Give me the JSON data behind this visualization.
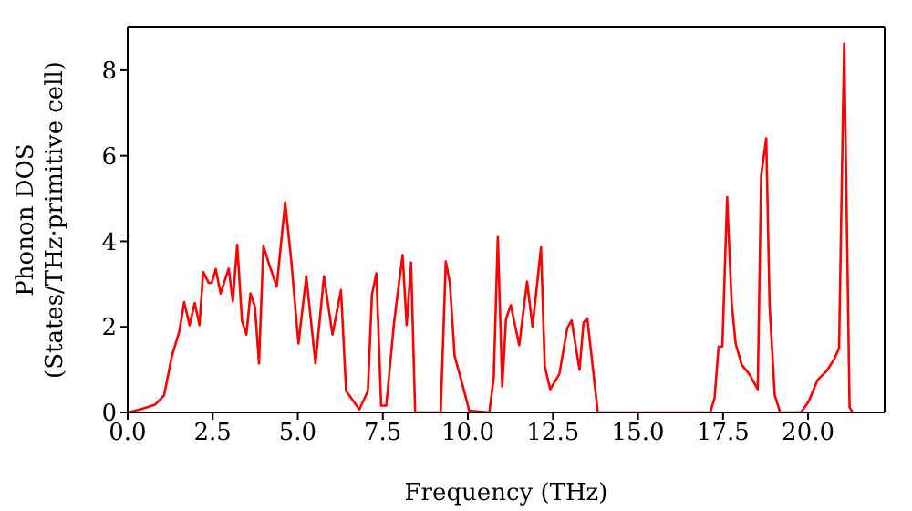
{
  "chart_data": {
    "type": "line",
    "xlabel": "Frequency (THz)",
    "ylabel": "Phonon DOS\n(States/THz·primitive cell)",
    "xlim": [
      0,
      22.25
    ],
    "ylim": [
      0,
      9
    ],
    "xticks": [
      {
        "value": 0,
        "label": "0.0"
      },
      {
        "value": 2.5,
        "label": "2.5"
      },
      {
        "value": 5,
        "label": "5.0"
      },
      {
        "value": 7.5,
        "label": "7.5"
      },
      {
        "value": 10,
        "label": "10.0"
      },
      {
        "value": 12.5,
        "label": "12.5"
      },
      {
        "value": 15,
        "label": "15.0"
      },
      {
        "value": 17.5,
        "label": "17.5"
      },
      {
        "value": 20,
        "label": "20.0"
      }
    ],
    "yticks": [
      0,
      2,
      4,
      6,
      8
    ],
    "marker": "none",
    "line_style": "solid",
    "series": [
      {
        "color": "#ff0000",
        "x": [
          0,
          0.45,
          0.8,
          1.07,
          1.3,
          1.52,
          1.66,
          1.82,
          1.97,
          2.11,
          2.22,
          2.38,
          2.47,
          2.59,
          2.73,
          2.97,
          3.09,
          3.22,
          3.36,
          3.49,
          3.61,
          3.74,
          3.86,
          3.99,
          4.13,
          4.38,
          4.63,
          4.81,
          5.02,
          5.25,
          5.52,
          5.77,
          6.02,
          6.27,
          6.42,
          6.81,
          7.06,
          7.18,
          7.31,
          7.45,
          7.6,
          7.83,
          8.08,
          8.2,
          8.33,
          8.45,
          9.2,
          9.35,
          9.47,
          9.61,
          9.83,
          10.04,
          10.63,
          10.76,
          10.88,
          11.01,
          11.12,
          11.26,
          11.51,
          11.74,
          11.9,
          12.15,
          12.26,
          12.42,
          12.69,
          12.92,
          13.05,
          13.28,
          13.4,
          13.51,
          13.82,
          17.12,
          17.25,
          17.37,
          17.48,
          17.62,
          17.75,
          17.87,
          18.05,
          18.27,
          18.52,
          18.62,
          18.77,
          18.87,
          19.02,
          19.18,
          19.79,
          20.02,
          20.28,
          20.55,
          20.77,
          20.91,
          21.06,
          21.22,
          21.31
        ],
        "values": [
          0,
          0.09,
          0.18,
          0.4,
          1.32,
          1.9,
          2.58,
          2.04,
          2.56,
          2.04,
          3.28,
          3.03,
          3.03,
          3.35,
          2.78,
          3.36,
          2.6,
          3.92,
          2.14,
          1.82,
          2.78,
          2.47,
          1.15,
          3.89,
          3.53,
          2.94,
          4.91,
          3.53,
          1.61,
          3.18,
          1.15,
          3.18,
          1.82,
          2.86,
          0.5,
          0.07,
          0.5,
          2.75,
          3.25,
          0.16,
          0.16,
          2.1,
          3.68,
          2.04,
          3.5,
          0,
          0,
          3.53,
          3.03,
          1.32,
          0.68,
          0.04,
          0,
          0.82,
          4.1,
          0.61,
          2.18,
          2.51,
          1.57,
          3.06,
          2.0,
          3.86,
          1.08,
          0.54,
          0.9,
          1.97,
          2.15,
          1.0,
          2.1,
          2.2,
          0,
          0,
          0.33,
          1.54,
          1.54,
          5.03,
          2.6,
          1.61,
          1.11,
          0.9,
          0.54,
          5.53,
          6.41,
          2.47,
          0.4,
          0,
          0,
          0.26,
          0.76,
          0.97,
          1.25,
          1.5,
          8.62,
          0.12,
          0
        ]
      }
    ]
  }
}
